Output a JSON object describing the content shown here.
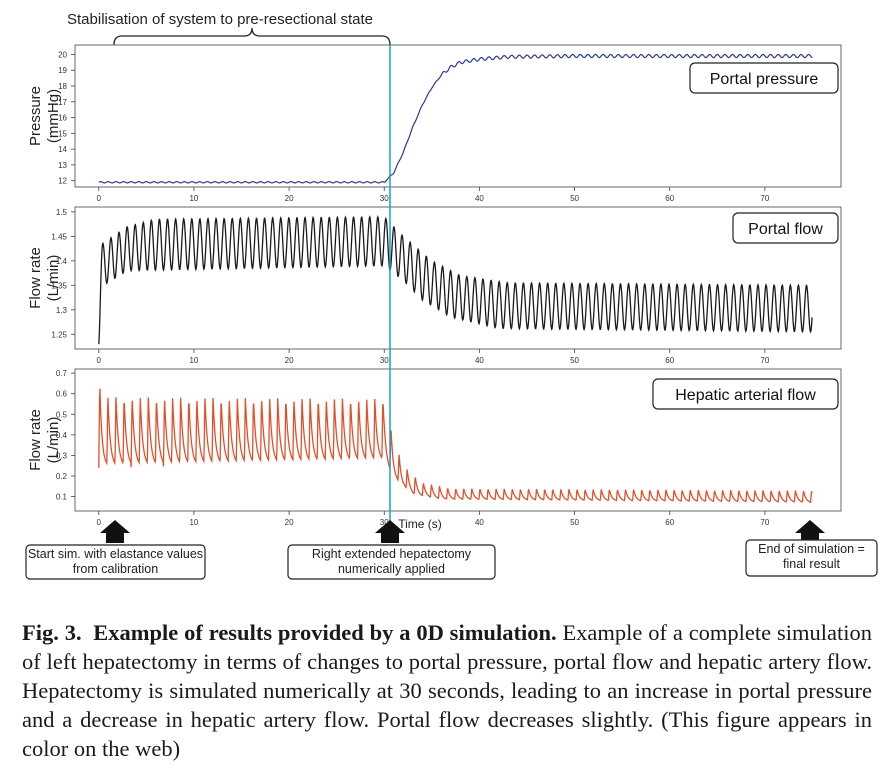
{
  "top_annotation": "Stabilisation of system to pre-resectional state",
  "x_axis_label": "Time (s)",
  "x_ticks": [
    0,
    10,
    20,
    30,
    40,
    50,
    60,
    70
  ],
  "bottom_notes": [
    "Start sim. with elastance values from calibration",
    "Right extended hepatectomy numerically applied",
    "End of simulation = final result"
  ],
  "colors": {
    "pressure": "#2e3a8c",
    "portal_flow": "#1a1a1a",
    "hepatic_flow": "#e0502a",
    "marker": "#1aa0c8"
  },
  "chart_data": [
    {
      "type": "line",
      "legend": "Portal pressure",
      "ylabel": "Pressure (mmHg)",
      "yticks": [
        12,
        13,
        14,
        15,
        16,
        17,
        18,
        19,
        20
      ],
      "ylim": [
        11.6,
        20.6
      ],
      "xlim": [
        -2.5,
        78
      ],
      "series": [
        {
          "points": [
            [
              0,
              11.9
            ],
            [
              30,
              11.9
            ],
            [
              31,
              12.5
            ],
            [
              32,
              13.8
            ],
            [
              33,
              15.4
            ],
            [
              34,
              16.8
            ],
            [
              35,
              17.9
            ],
            [
              36,
              18.7
            ],
            [
              37,
              19.2
            ],
            [
              38,
              19.5
            ],
            [
              40,
              19.7
            ],
            [
              43,
              19.85
            ],
            [
              50,
              19.9
            ],
            [
              75,
              19.9
            ]
          ],
          "osc_period": 0.8,
          "osc_amp": 0.1
        }
      ]
    },
    {
      "type": "line",
      "legend": "Portal flow",
      "ylabel": "Flow rate (L/min)",
      "yticks": [
        1.25,
        1.3,
        1.35,
        1.4,
        1.45,
        1.5
      ],
      "ylim": [
        1.22,
        1.51
      ],
      "xlim": [
        -2.5,
        78
      ],
      "series": [
        {
          "min_points": [
            [
              0,
              1.23
            ],
            [
              0.5,
              1.35
            ],
            [
              3,
              1.38
            ],
            [
              30,
              1.39
            ],
            [
              32,
              1.36
            ],
            [
              34,
              1.32
            ],
            [
              37,
              1.285
            ],
            [
              42,
              1.262
            ],
            [
              75,
              1.255
            ]
          ],
          "max_points": [
            [
              0,
              1.43
            ],
            [
              3,
              1.47
            ],
            [
              6,
              1.485
            ],
            [
              30,
              1.49
            ],
            [
              32,
              1.45
            ],
            [
              35,
              1.4
            ],
            [
              38,
              1.37
            ],
            [
              43,
              1.355
            ],
            [
              75,
              1.35
            ]
          ],
          "period": 0.85
        }
      ]
    },
    {
      "type": "line",
      "legend": "Hepatic arterial flow",
      "ylabel": "Flow rate (L/min)",
      "yticks": [
        0.1,
        0.2,
        0.3,
        0.4,
        0.5,
        0.6,
        0.7
      ],
      "ylim": [
        0.03,
        0.72
      ],
      "xlim": [
        -2.5,
        78
      ],
      "series": [
        {
          "peak_points": [
            [
              0,
              0.67
            ],
            [
              0.5,
              0.59
            ],
            [
              30,
              0.58
            ],
            [
              31,
              0.38
            ],
            [
              32,
              0.25
            ],
            [
              34,
              0.17
            ],
            [
              37,
              0.14
            ],
            [
              75,
              0.13
            ]
          ],
          "trough_points": [
            [
              0,
              0.24
            ],
            [
              30,
              0.27
            ],
            [
              31,
              0.19
            ],
            [
              33,
              0.11
            ],
            [
              36,
              0.085
            ],
            [
              75,
              0.07
            ]
          ],
          "period": 0.85
        }
      ]
    }
  ]
}
